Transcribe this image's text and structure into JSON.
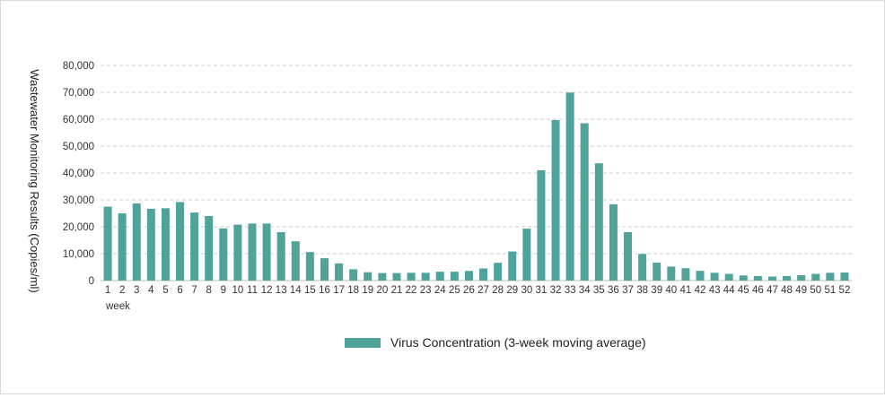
{
  "chart_data": {
    "type": "bar",
    "title": "",
    "xlabel": "week",
    "ylabel": "Wastewater Monitoring Results (Copies/ml)",
    "ylim": [
      0,
      80000
    ],
    "yticks": [
      0,
      10000,
      20000,
      30000,
      40000,
      50000,
      60000,
      70000,
      80000
    ],
    "ytick_labels": [
      "0",
      "10,000",
      "20,000",
      "30,000",
      "40,000",
      "50,000",
      "60,000",
      "70,000",
      "80,000"
    ],
    "grid": true,
    "legend_position": "bottom-center",
    "categories": [
      "1",
      "2",
      "3",
      "4",
      "5",
      "6",
      "7",
      "8",
      "9",
      "10",
      "11",
      "12",
      "13",
      "14",
      "15",
      "16",
      "17",
      "18",
      "19",
      "20",
      "21",
      "22",
      "23",
      "24",
      "25",
      "26",
      "27",
      "28",
      "29",
      "30",
      "31",
      "32",
      "33",
      "34",
      "35",
      "36",
      "37",
      "38",
      "39",
      "40",
      "41",
      "42",
      "43",
      "44",
      "45",
      "46",
      "47",
      "48",
      "49",
      "50",
      "51",
      "52"
    ],
    "series": [
      {
        "name": "Virus Concentration (3-week moving average)",
        "color": "#4fa39a",
        "values": [
          27500,
          25000,
          28700,
          26700,
          26900,
          29200,
          25300,
          24000,
          19400,
          20800,
          21200,
          21200,
          18000,
          14600,
          10600,
          8300,
          6400,
          4200,
          3100,
          2800,
          2800,
          2900,
          2900,
          3300,
          3300,
          3600,
          4500,
          6600,
          10800,
          19300,
          41000,
          59700,
          69900,
          58500,
          43600,
          28400,
          18000,
          9900,
          6700,
          5200,
          4600,
          3600,
          2900,
          2500,
          1900,
          1700,
          1500,
          1700,
          2000,
          2500,
          2900,
          3000
        ]
      }
    ]
  }
}
